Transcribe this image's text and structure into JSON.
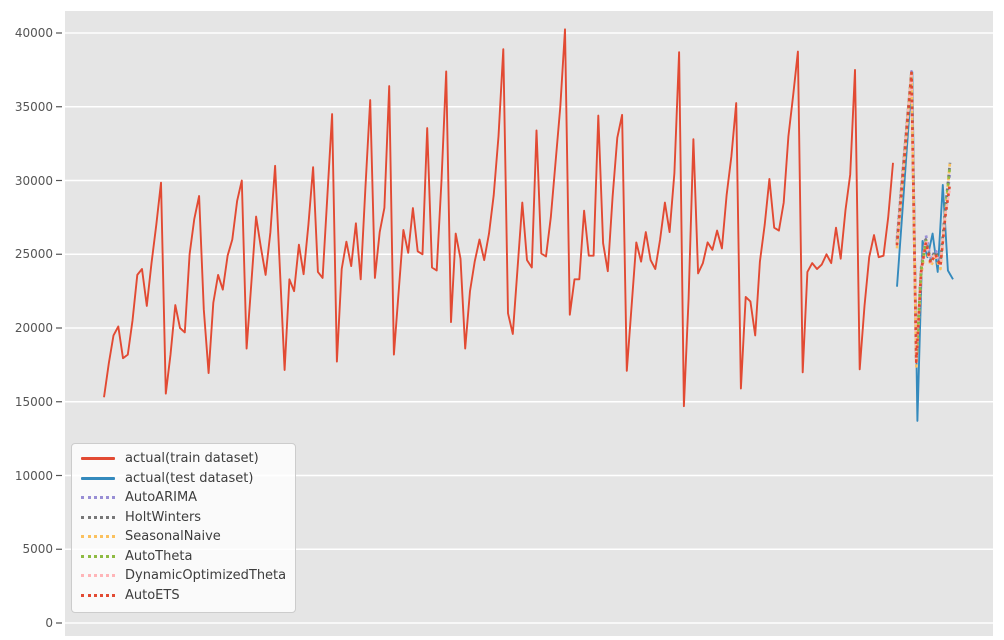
{
  "figure": {
    "background": "#ffffff",
    "plot_background": "#e5e5e5",
    "grid_color": "#ffffff",
    "tick_color": "#555555",
    "text_color": "#3d3d3d"
  },
  "legend": {
    "position": "lower left",
    "items": [
      {
        "label": "actual(train dataset)",
        "color": "#E24A33",
        "style": "solid"
      },
      {
        "label": "actual(test dataset)",
        "color": "#348ABD",
        "style": "solid"
      },
      {
        "label": "AutoARIMA",
        "color": "#988ED5",
        "style": "dotted"
      },
      {
        "label": "HoltWinters",
        "color": "#777777",
        "style": "dotted"
      },
      {
        "label": "SeasonalNaive",
        "color": "#FBC15E",
        "style": "dotted"
      },
      {
        "label": "AutoTheta",
        "color": "#8EBA42",
        "style": "dotted"
      },
      {
        "label": "DynamicOptimizedTheta",
        "color": "#FFB5B8",
        "style": "dotted"
      },
      {
        "label": "AutoETS",
        "color": "#E24A33",
        "style": "dotted"
      }
    ]
  },
  "chart_data": {
    "type": "line",
    "title": "",
    "xlabel": "",
    "ylabel": "",
    "grid": true,
    "x_axis": {
      "tick_labels_visible": false,
      "description": "monthly time steps"
    },
    "y_axis": {
      "range": [
        0,
        40000
      ],
      "ticks": [
        {
          "label": "0",
          "value": 0
        },
        {
          "label": "5000",
          "value": 5000
        },
        {
          "label": "10000",
          "value": 10000
        },
        {
          "label": "15000",
          "value": 15000
        },
        {
          "label": "20000",
          "value": 20000
        },
        {
          "label": "25000",
          "value": 25000
        },
        {
          "label": "30000",
          "value": 30000
        },
        {
          "label": "35000",
          "value": 35000
        },
        {
          "label": "40000",
          "value": 40000
        }
      ]
    },
    "series": [
      {
        "id": "train",
        "name": "actual(train dataset)",
        "role": "train",
        "color": "#E24A33",
        "line_style": "solid",
        "values": [
          15300,
          17600,
          19500,
          20100,
          17950,
          18200,
          20500,
          23600,
          24000,
          21500,
          24400,
          27000,
          29850,
          15550,
          18200,
          21550,
          20000,
          19700,
          25000,
          27400,
          28950,
          21250,
          16950,
          21700,
          23600,
          22600,
          24900,
          26000,
          28600,
          30000,
          18600,
          23000,
          27550,
          25500,
          23600,
          26500,
          31000,
          24000,
          17150,
          23300,
          22500,
          25650,
          23650,
          27000,
          30900,
          23800,
          23400,
          29000,
          34500,
          17720,
          24000,
          25850,
          24200,
          27100,
          23300,
          29500,
          35450,
          23400,
          26500,
          28150,
          36400,
          18200,
          22500,
          26650,
          25100,
          28130,
          25200,
          25000,
          33550,
          24100,
          23900,
          30000,
          37400,
          20400,
          26400,
          24700,
          18600,
          22500,
          24500,
          26000,
          24600,
          26400,
          29000,
          33000,
          38900,
          21000,
          19600,
          24000,
          28500,
          24600,
          24100,
          33400,
          25050,
          24850,
          27500,
          31200,
          35000,
          40250,
          20900,
          23300,
          23300,
          27950,
          24900,
          24900,
          34400,
          25750,
          23850,
          28900,
          32900,
          34450,
          17100,
          21500,
          25800,
          24500,
          26500,
          24600,
          24000,
          26000,
          28500,
          26500,
          30500,
          38700,
          14700,
          22000,
          32800,
          23700,
          24400,
          25800,
          25300,
          26600,
          25400,
          29000,
          31650,
          35250,
          15900,
          22100,
          21800,
          19500,
          24500,
          27000,
          30100,
          26800,
          26600,
          28500,
          33000,
          35800,
          38740,
          17000,
          23800,
          24400,
          24000,
          24300,
          25000,
          24400,
          26800,
          24700,
          28000,
          30400,
          37500,
          17200,
          21500,
          24800,
          26300,
          24800,
          24900,
          27500,
          31200
        ]
      },
      {
        "id": "test",
        "name": "actual(test dataset)",
        "role": "test",
        "color": "#348ABD",
        "line_style": "solid",
        "values": [
          22800,
          27600,
          32500,
          37350,
          13700,
          25900,
          24800,
          26400,
          23800,
          29700,
          23900,
          23300
        ]
      },
      {
        "id": "autoarima",
        "name": "AutoARIMA",
        "role": "forecast",
        "color": "#988ED5",
        "line_style": "dotted",
        "values": [
          26100,
          29900,
          33700,
          37400,
          17900,
          24100,
          26300,
          24700,
          25300,
          24500,
          27900,
          30500
        ]
      },
      {
        "id": "holtwinters",
        "name": "HoltWinters",
        "role": "forecast",
        "color": "#777777",
        "line_style": "dotted",
        "values": [
          25900,
          29800,
          33600,
          37400,
          17800,
          24000,
          26000,
          24600,
          25200,
          24400,
          28000,
          31200
        ]
      },
      {
        "id": "seasonalnaive",
        "name": "SeasonalNaive",
        "role": "forecast",
        "color": "#FBC15E",
        "line_style": "dotted",
        "values": [
          25400,
          29300,
          33300,
          37300,
          17400,
          23600,
          25600,
          24200,
          24800,
          24000,
          27600,
          31300
        ]
      },
      {
        "id": "autotheta",
        "name": "AutoTheta",
        "role": "forecast",
        "color": "#8EBA42",
        "line_style": "dotted",
        "values": [
          25700,
          29600,
          33500,
          37350,
          17800,
          23900,
          25900,
          24500,
          25100,
          24300,
          27800,
          31000
        ]
      },
      {
        "id": "dynamicoptimizedtheta",
        "name": "DynamicOptimizedTheta",
        "role": "forecast",
        "color": "#FFB5B8",
        "line_style": "dotted",
        "values": [
          25800,
          29650,
          33500,
          37350,
          17850,
          23950,
          25950,
          24450,
          25050,
          24250,
          27700,
          29500
        ]
      },
      {
        "id": "autoets",
        "name": "AutoETS",
        "role": "forecast",
        "color": "#E24A33",
        "line_style": "dotted",
        "values": [
          25600,
          29500,
          33400,
          37300,
          17700,
          23800,
          25800,
          24400,
          25000,
          24200,
          27500,
          29800
        ]
      }
    ]
  }
}
